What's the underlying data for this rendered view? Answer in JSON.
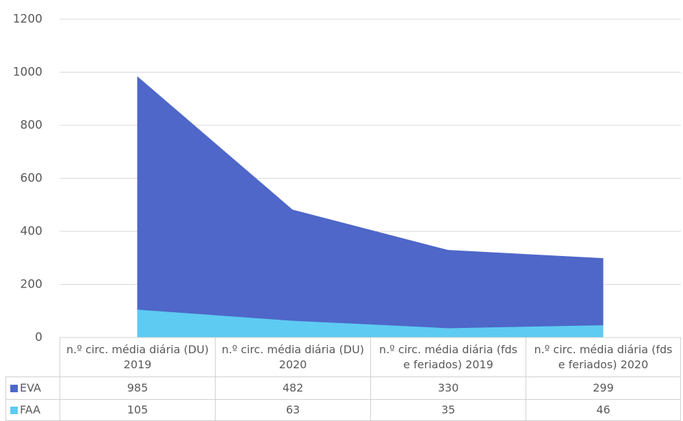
{
  "chart_data": {
    "type": "area",
    "categories": [
      "n.º circ. média diária (DU) 2019",
      "n.º circ. média diária (DU) 2020",
      "n.º circ. média diária (fds e feriados) 2019",
      "n.º circ. média diária (fds e feriados) 2020"
    ],
    "series": [
      {
        "name": "EVA",
        "color": "#4e67c8",
        "values": [
          985,
          482,
          330,
          299
        ]
      },
      {
        "name": "FAA",
        "color": "#5ecbf2",
        "values": [
          105,
          63,
          35,
          46
        ]
      }
    ],
    "ylim": [
      0,
      1200
    ],
    "yticks": [
      0,
      200,
      400,
      600,
      800,
      1000,
      1200
    ],
    "grid": true
  }
}
